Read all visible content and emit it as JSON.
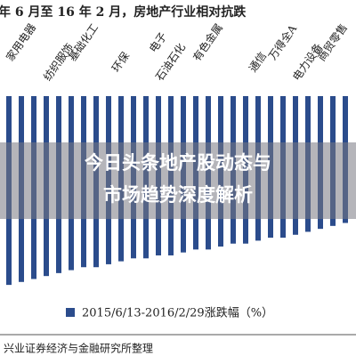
{
  "chart_data": {
    "type": "bar",
    "title": "年 6 月至 16 年 2 月，房地产行业相对抗跌",
    "categories": [
      null,
      "家用电器",
      null,
      null,
      "纺织服饰",
      null,
      "基础化工",
      null,
      null,
      "环保",
      null,
      null,
      "电子",
      "石油石化",
      null,
      null,
      "有色金属",
      null,
      null,
      null,
      "通信",
      null,
      "万得全A",
      null,
      "电力设备",
      null,
      "商贸零售",
      null
    ],
    "series": [
      {
        "name": "2015/6/13-2016/2/29涨跌幅（%）",
        "color": "#2b4c8c",
        "values": [
          -64,
          -63,
          -62,
          -61,
          -60,
          -59,
          -58,
          -58,
          -57,
          -56,
          -55,
          -55,
          -54,
          -54,
          -53,
          -52,
          -52,
          -51,
          -50,
          -50,
          -49,
          -48,
          -48,
          -47,
          -46,
          -45,
          -44,
          -43
        ]
      }
    ],
    "ylim": [
      -70,
      0
    ],
    "annotations": [
      "今日头条地产股动态与",
      "市场趋势深度解析"
    ],
    "source": "兴业证券经济与金融研究所整理"
  }
}
